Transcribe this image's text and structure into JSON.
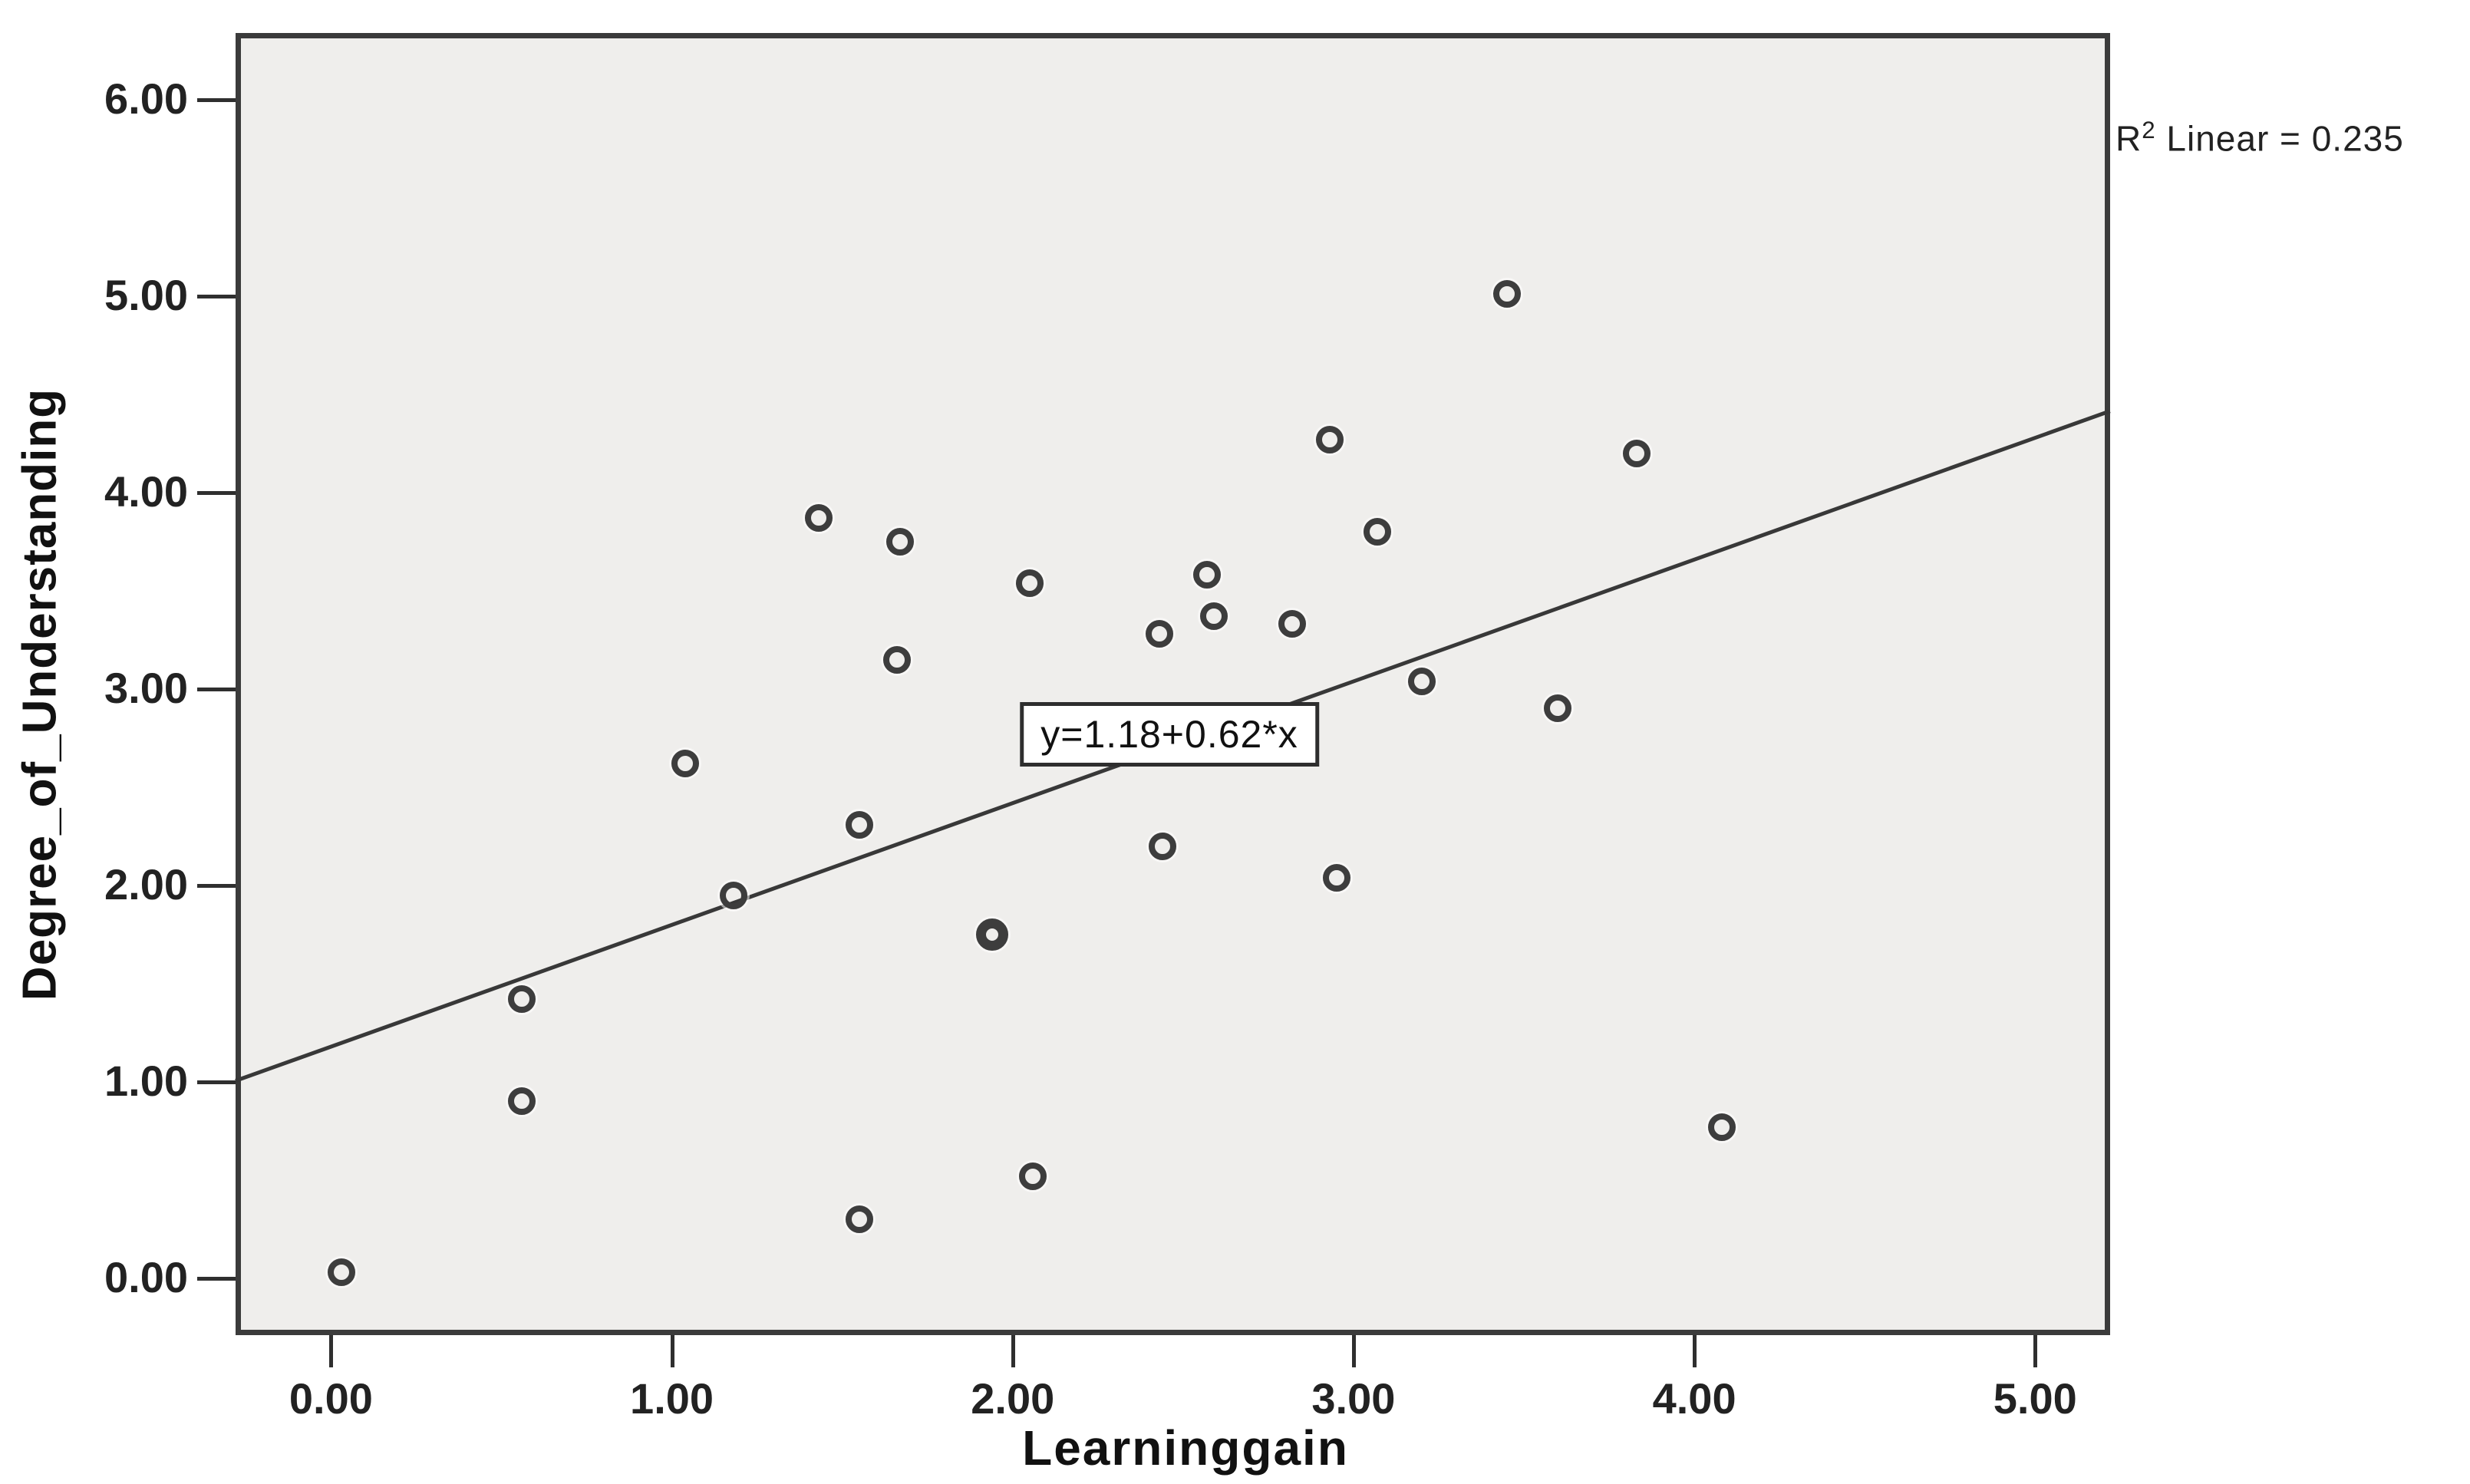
{
  "figure": {
    "background": "#ffffff",
    "plot_background": "#efeeec",
    "frame_color": "#3b3b3b",
    "marker_color": "#3d3d3d",
    "line_color": "#383838"
  },
  "chart_data": {
    "type": "scatter",
    "title": "",
    "xlabel": "Learninggain",
    "ylabel": "Degree_of_Understanding",
    "xlim": [
      -0.28,
      5.22
    ],
    "ylim": [
      -0.29,
      6.34
    ],
    "grid": false,
    "x_ticks": [
      {
        "value": 0,
        "label": "0.00"
      },
      {
        "value": 1,
        "label": "1.00"
      },
      {
        "value": 2,
        "label": "2.00"
      },
      {
        "value": 3,
        "label": "3.00"
      },
      {
        "value": 4,
        "label": "4.00"
      },
      {
        "value": 5,
        "label": "5.00"
      }
    ],
    "y_ticks": [
      {
        "value": 0,
        "label": "0.00"
      },
      {
        "value": 1,
        "label": "1.00"
      },
      {
        "value": 2,
        "label": "2.00"
      },
      {
        "value": 3,
        "label": "3.00"
      },
      {
        "value": 4,
        "label": "4.00"
      },
      {
        "value": 5,
        "label": "5.00"
      },
      {
        "value": 6,
        "label": "6.00"
      }
    ],
    "points": [
      {
        "x": 0.03,
        "y": 0.03
      },
      {
        "x": 0.56,
        "y": 0.9
      },
      {
        "x": 0.56,
        "y": 1.42
      },
      {
        "x": 1.04,
        "y": 2.62
      },
      {
        "x": 1.18,
        "y": 1.95
      },
      {
        "x": 1.43,
        "y": 3.87
      },
      {
        "x": 1.55,
        "y": 2.31
      },
      {
        "x": 1.55,
        "y": 0.3
      },
      {
        "x": 1.66,
        "y": 3.15
      },
      {
        "x": 1.67,
        "y": 3.75
      },
      {
        "x": 1.94,
        "y": 1.75,
        "bold": true
      },
      {
        "x": 2.05,
        "y": 3.54
      },
      {
        "x": 2.06,
        "y": 0.52
      },
      {
        "x": 2.43,
        "y": 3.28
      },
      {
        "x": 2.44,
        "y": 2.2
      },
      {
        "x": 2.57,
        "y": 3.58
      },
      {
        "x": 2.59,
        "y": 3.37
      },
      {
        "x": 2.82,
        "y": 3.33
      },
      {
        "x": 2.93,
        "y": 4.27
      },
      {
        "x": 2.95,
        "y": 2.04
      },
      {
        "x": 3.07,
        "y": 3.8
      },
      {
        "x": 3.2,
        "y": 3.04
      },
      {
        "x": 3.45,
        "y": 5.01
      },
      {
        "x": 3.6,
        "y": 2.9
      },
      {
        "x": 3.83,
        "y": 4.2
      },
      {
        "x": 4.08,
        "y": 0.77
      }
    ],
    "fit_line": {
      "slope": 0.62,
      "intercept": 1.18,
      "equation": "y=1.18+0.62*x",
      "r2": 0.235,
      "r2_base": "R",
      "r2_sup": "2",
      "r2_rest": " Linear = 0.235",
      "r2_label": "R² Linear = 0.235"
    },
    "equation_box_center": {
      "x": 2.46,
      "y": 2.77
    },
    "legend": null
  }
}
